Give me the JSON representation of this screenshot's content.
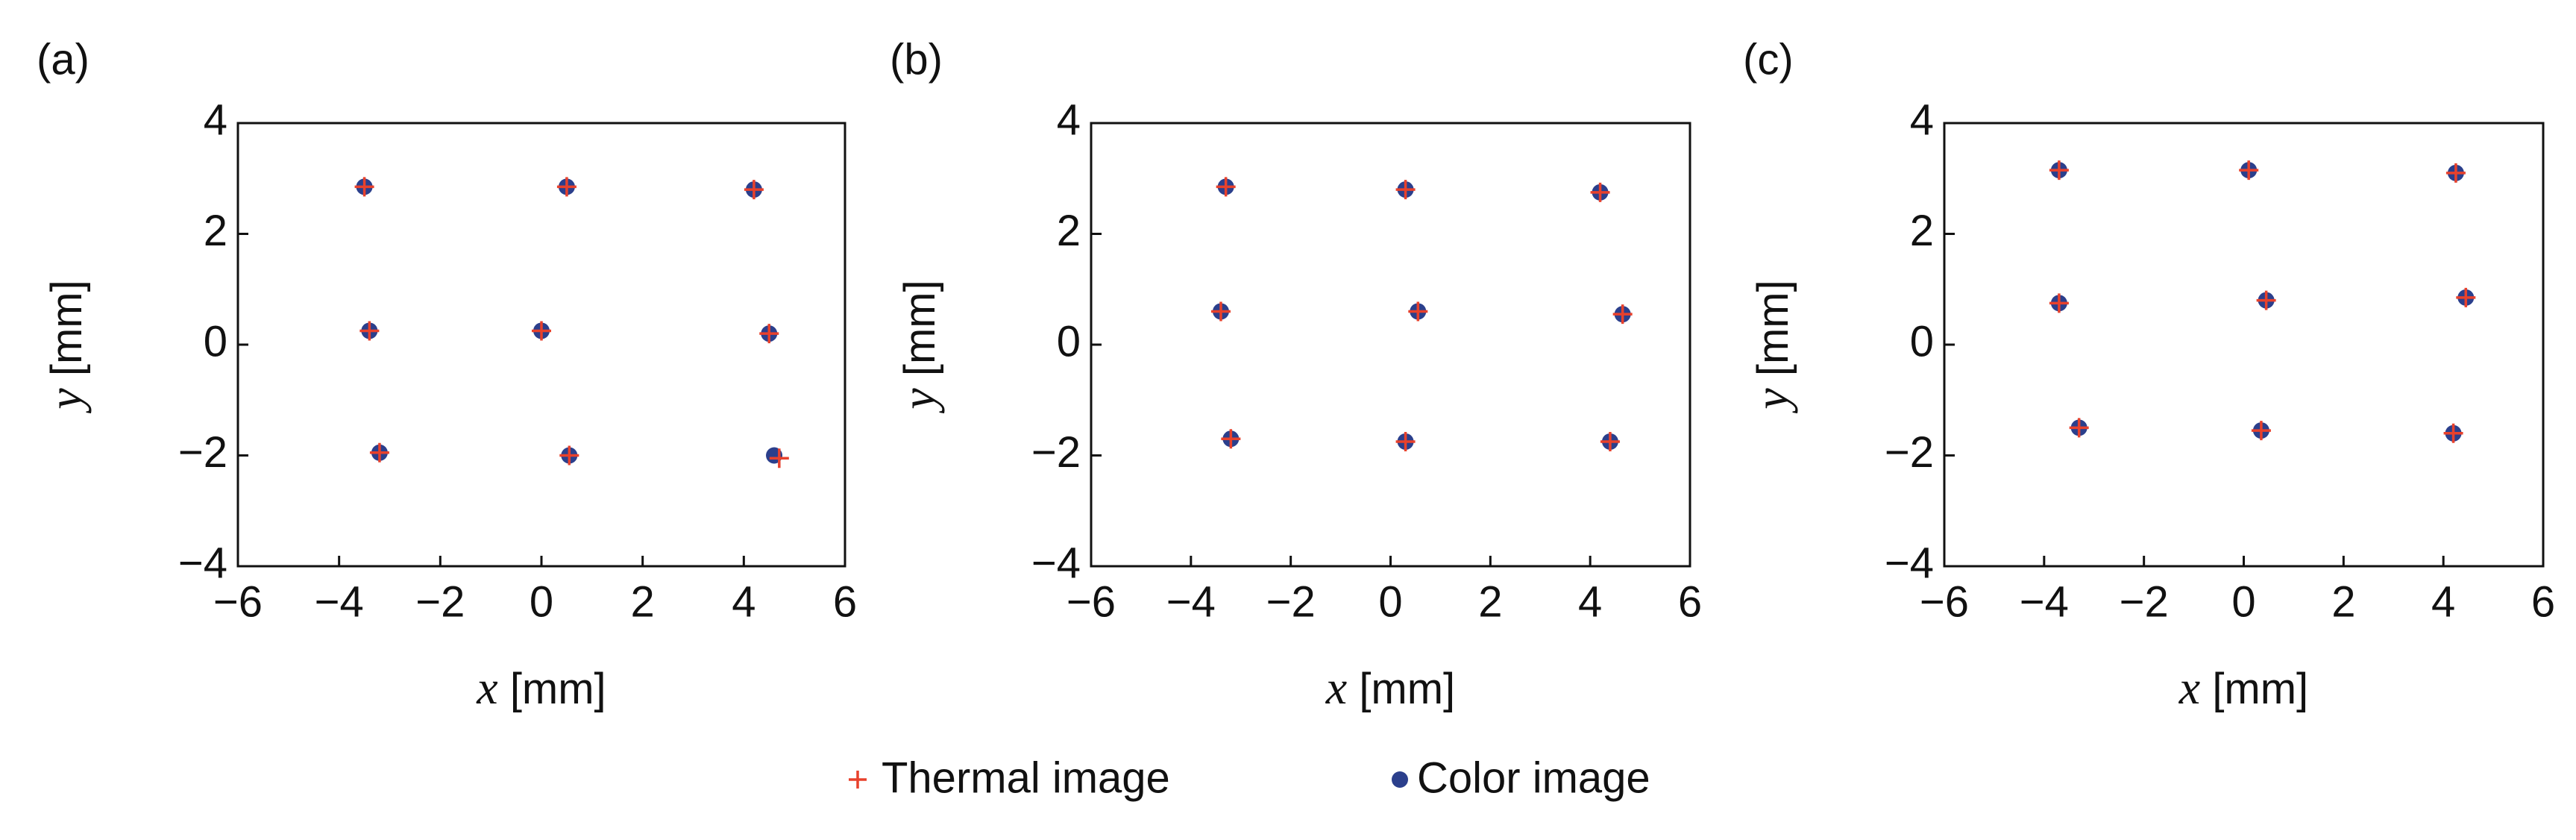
{
  "chart_data": [
    {
      "type": "scatter",
      "panel": "(a)",
      "xlabel": "x [mm]",
      "ylabel": "y [mm]",
      "xlim": [
        -6,
        6
      ],
      "ylim": [
        -4,
        4
      ],
      "xticks": [
        {
          "value": -6,
          "label": "−6"
        },
        {
          "value": -4,
          "label": "−4"
        },
        {
          "value": -2,
          "label": "−2"
        },
        0,
        2,
        4,
        6
      ],
      "yticks": [
        {
          "value": -4,
          "label": "−4"
        },
        {
          "value": -2,
          "label": "−2"
        },
        0,
        2,
        4
      ],
      "series": [
        {
          "name": "Thermal image",
          "color": "#e8412c",
          "marker": "plus",
          "x": [
            -3.5,
            0.5,
            4.2,
            -3.4,
            0.0,
            4.5,
            -3.2,
            0.55,
            4.7
          ],
          "values": [
            2.85,
            2.85,
            2.8,
            0.25,
            0.25,
            0.2,
            -1.95,
            -2.0,
            -2.05
          ]
        },
        {
          "name": "Color image",
          "color": "#2b3f8c",
          "marker": "dot",
          "x": [
            -3.5,
            0.5,
            4.2,
            -3.4,
            0.0,
            4.5,
            -3.2,
            0.55,
            4.6
          ],
          "values": [
            2.85,
            2.85,
            2.8,
            0.25,
            0.25,
            0.2,
            -1.95,
            -2.0,
            -2.0
          ]
        }
      ]
    },
    {
      "type": "scatter",
      "panel": "(b)",
      "xlabel": "x [mm]",
      "ylabel": "y [mm]",
      "xlim": [
        -6,
        6
      ],
      "ylim": [
        -4,
        4
      ],
      "xticks": [
        {
          "value": -6,
          "label": "−6"
        },
        {
          "value": -4,
          "label": "−4"
        },
        {
          "value": -2,
          "label": "−2"
        },
        0,
        2,
        4,
        6
      ],
      "yticks": [
        {
          "value": -4,
          "label": "−4"
        },
        {
          "value": -2,
          "label": "−2"
        },
        0,
        2,
        4
      ],
      "series": [
        {
          "color": "#e8412c",
          "marker": "plus",
          "x": [
            -3.3,
            0.3,
            4.2,
            -3.4,
            0.55,
            4.65,
            -3.2,
            0.3,
            4.4
          ],
          "values": [
            2.85,
            2.8,
            2.75,
            0.6,
            0.6,
            0.55,
            -1.7,
            -1.75,
            -1.75
          ]
        },
        {
          "color": "#2b3f8c",
          "marker": "dot",
          "x": [
            -3.3,
            0.3,
            4.2,
            -3.4,
            0.55,
            4.65,
            -3.2,
            0.3,
            4.4
          ],
          "values": [
            2.85,
            2.8,
            2.75,
            0.6,
            0.6,
            0.55,
            -1.7,
            -1.75,
            -1.75
          ]
        }
      ]
    },
    {
      "type": "scatter",
      "panel": "(c)",
      "xlabel": "x [mm]",
      "ylabel": "y [mm]",
      "xlim": [
        -6,
        6
      ],
      "ylim": [
        -4,
        4
      ],
      "xticks": [
        {
          "value": -6,
          "label": "−6"
        },
        {
          "value": -4,
          "label": "−4"
        },
        {
          "value": -2,
          "label": "−2"
        },
        0,
        2,
        4,
        6
      ],
      "yticks": [
        {
          "value": -4,
          "label": "−4"
        },
        {
          "value": -2,
          "label": "−2"
        },
        0,
        2,
        4
      ],
      "series": [
        {
          "color": "#e8412c",
          "marker": "plus",
          "x": [
            -3.7,
            0.1,
            4.25,
            -3.7,
            0.45,
            4.45,
            -3.3,
            0.35,
            4.2
          ],
          "values": [
            3.15,
            3.15,
            3.1,
            0.75,
            0.8,
            0.85,
            -1.5,
            -1.55,
            -1.6
          ]
        },
        {
          "color": "#2b3f8c",
          "marker": "dot",
          "x": [
            -3.7,
            0.1,
            4.25,
            -3.7,
            0.45,
            4.45,
            -3.3,
            0.35,
            4.2
          ],
          "values": [
            3.15,
            3.15,
            3.1,
            0.75,
            0.8,
            0.85,
            -1.5,
            -1.55,
            -1.6
          ]
        }
      ]
    }
  ]
}
